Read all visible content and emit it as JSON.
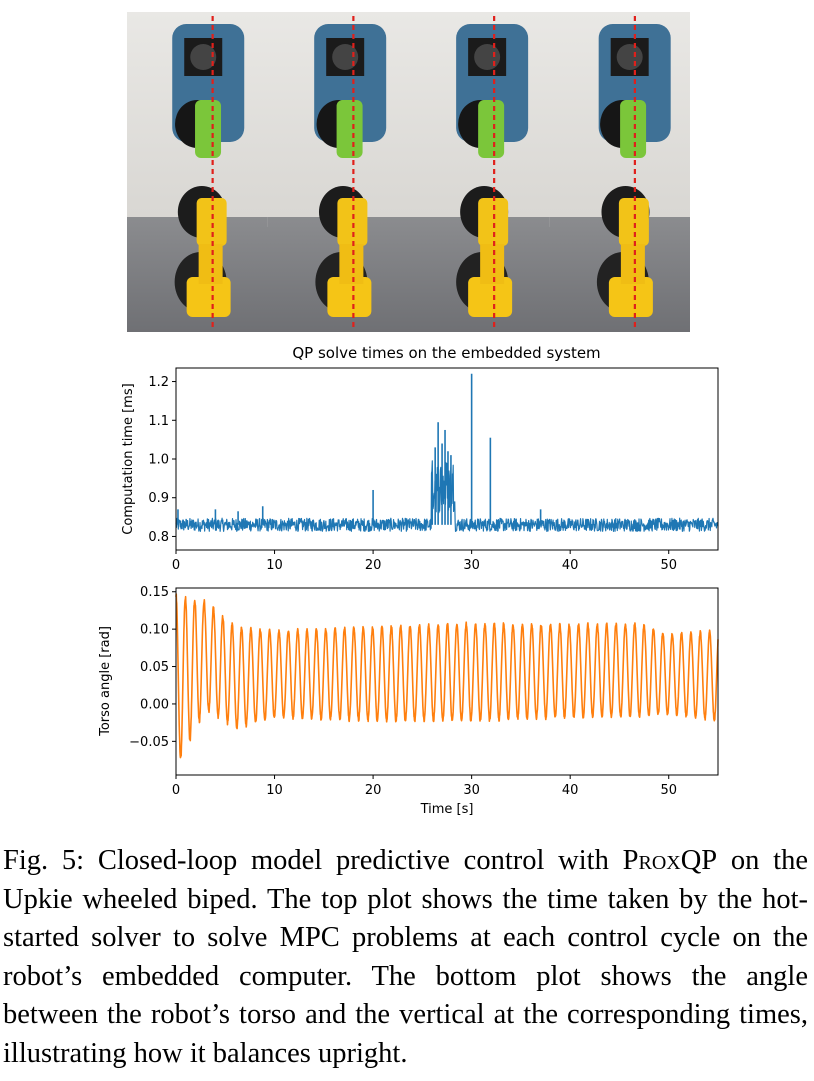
{
  "figure": {
    "photo_alt": "Four photos of the Upkie wheeled biped balancing, with red dashed vertical reference lines"
  },
  "chart_data": [
    {
      "type": "line",
      "title": "QP solve times on the embedded system",
      "xlabel": "",
      "ylabel": "Computation time [ms]",
      "xlim": [
        0,
        55
      ],
      "ylim": [
        0.765,
        1.235
      ],
      "xticks": [
        0,
        10,
        20,
        30,
        40,
        50
      ],
      "yticks": [
        0.8,
        0.9,
        1.0,
        1.1,
        1.2
      ],
      "ytick_labels": [
        "0.8",
        "0.9",
        "1.0",
        "1.1",
        "1.2"
      ],
      "color": "#1f77b4",
      "grid": false,
      "series": [
        {
          "baseline": 0.83,
          "spikes": [
            {
              "x": 0.2,
              "y": 0.87
            },
            {
              "x": 4.0,
              "y": 0.87
            },
            {
              "x": 6.3,
              "y": 0.865
            },
            {
              "x": 8.8,
              "y": 0.878
            },
            {
              "x": 20.0,
              "y": 0.92
            },
            {
              "x": 26.0,
              "y": 0.97
            },
            {
              "x": 26.3,
              "y": 1.03
            },
            {
              "x": 26.6,
              "y": 1.095
            },
            {
              "x": 27.0,
              "y": 1.04
            },
            {
              "x": 27.3,
              "y": 1.075
            },
            {
              "x": 27.6,
              "y": 1.02
            },
            {
              "x": 27.9,
              "y": 1.01
            },
            {
              "x": 30.0,
              "y": 1.22
            },
            {
              "x": 31.9,
              "y": 1.055
            },
            {
              "x": 37.0,
              "y": 0.87
            }
          ]
        }
      ]
    },
    {
      "type": "line",
      "title": "",
      "xlabel": "Time [s]",
      "ylabel": "Torso angle [rad]",
      "xlim": [
        0,
        55
      ],
      "ylim": [
        -0.095,
        0.155
      ],
      "xticks": [
        0,
        10,
        20,
        30,
        40,
        50
      ],
      "yticks": [
        -0.05,
        0.0,
        0.05,
        0.1,
        0.15
      ],
      "ytick_labels": [
        "−0.05",
        "0.00",
        "0.05",
        "0.10",
        "0.15"
      ],
      "color": "#ff7f0e",
      "grid": false,
      "series": [
        {
          "period_s": 0.95,
          "envelope": [
            {
              "t": 0,
              "max": 0.15,
              "min": -0.09
            },
            {
              "t": 3,
              "max": 0.14,
              "min": -0.01
            },
            {
              "t": 6,
              "max": 0.105,
              "min": -0.035
            },
            {
              "t": 10,
              "max": 0.1,
              "min": -0.02
            },
            {
              "t": 20,
              "max": 0.105,
              "min": -0.025
            },
            {
              "t": 30,
              "max": 0.11,
              "min": -0.025
            },
            {
              "t": 40,
              "max": 0.108,
              "min": -0.02
            },
            {
              "t": 47,
              "max": 0.11,
              "min": -0.02
            },
            {
              "t": 50,
              "max": 0.095,
              "min": -0.015
            },
            {
              "t": 55,
              "max": 0.1,
              "min": -0.025
            }
          ]
        }
      ]
    }
  ],
  "caption": {
    "label": "Fig. 5:",
    "text_before": " Closed-loop model predictive control with ",
    "method": "ProxQP",
    "text_after": " on the Upkie wheeled biped. The top plot shows the time taken by the hot-started solver to solve MPC problems at each control cycle on the robot’s embedded computer. The bottom plot shows the angle between the robot’s torso and the vertical at the corresponding times, illustrating how it balances upright."
  }
}
